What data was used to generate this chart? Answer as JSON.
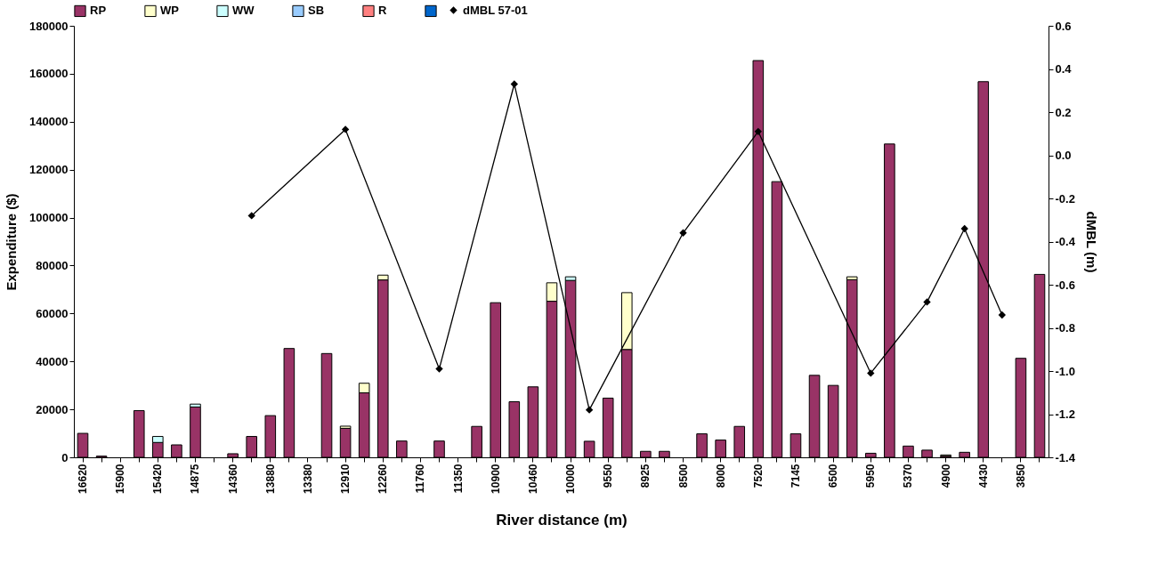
{
  "chart_data": {
    "type": "bar",
    "xlabel": "River distance (m)",
    "ylabel": "Expenditure ($)",
    "y2label": "dMBL (m)",
    "stacked": true,
    "legend": "top",
    "marker": "diamond",
    "categories": [
      "16620",
      null,
      "15900",
      null,
      "15420",
      null,
      "14875",
      null,
      "14360",
      null,
      "13880",
      null,
      "13380",
      null,
      "12910",
      null,
      "12260",
      null,
      "11760",
      null,
      "11350",
      null,
      "10900",
      null,
      "10460",
      null,
      "10000",
      null,
      "9550",
      null,
      "8925",
      null,
      "8500",
      null,
      "8000",
      null,
      "7520",
      null,
      "7145",
      null,
      "6500",
      null,
      "5950",
      null,
      "5370",
      null,
      "4900",
      null,
      "4430",
      null,
      "3850",
      null
    ],
    "ylim": [
      0,
      180000
    ],
    "yticks": [
      0,
      20000,
      40000,
      60000,
      80000,
      100000,
      120000,
      140000,
      160000,
      180000
    ],
    "y2lim": [
      -1.4,
      0.6
    ],
    "y2ticks": [
      {
        "value": -1.4,
        "label": "-1.4"
      },
      {
        "value": -1.2,
        "label": "-1.2"
      },
      {
        "value": -1,
        "label": "-1.0"
      },
      {
        "value": -0.8,
        "label": "-0.8"
      },
      {
        "value": -0.6,
        "label": "-0.6"
      },
      {
        "value": -0.4,
        "label": "-0.4"
      },
      {
        "value": -0.2,
        "label": "-0.2"
      },
      {
        "value": 0,
        "label": "0.0"
      },
      {
        "value": 0.2,
        "label": "0.2"
      },
      {
        "value": 0.4,
        "label": "0.4"
      },
      {
        "value": 0.6,
        "label": "0.6"
      }
    ],
    "series": [
      {
        "name": "RP",
        "color": "#993366",
        "values": [
          10000,
          500,
          null,
          19500,
          6200,
          5200,
          21000,
          null,
          1500,
          8700,
          17400,
          45400,
          null,
          43300,
          12100,
          26900,
          74000,
          6800,
          null,
          6800,
          null,
          12900,
          64500,
          23200,
          29400,
          65100,
          73800,
          6700,
          24700,
          45000,
          2500,
          2500,
          null,
          9800,
          7200,
          12900,
          165500,
          115000,
          9800,
          34200,
          30000,
          74100,
          1700,
          130700,
          4700,
          3000,
          500,
          2100,
          156700,
          null,
          41300,
          76300
        ]
      },
      {
        "name": "WP",
        "color": "#ffffcc",
        "values": [
          null,
          null,
          null,
          null,
          null,
          null,
          null,
          null,
          null,
          null,
          null,
          null,
          null,
          null,
          900,
          4000,
          2000,
          null,
          null,
          null,
          null,
          null,
          null,
          null,
          null,
          7700,
          null,
          null,
          null,
          23700,
          null,
          null,
          null,
          null,
          null,
          null,
          null,
          null,
          null,
          null,
          null,
          1200,
          null,
          null,
          null,
          null,
          500,
          null,
          null,
          null,
          null,
          null
        ]
      },
      {
        "name": "WW",
        "color": "#ccffff",
        "values": [
          null,
          null,
          null,
          null,
          2500,
          null,
          1200,
          null,
          null,
          null,
          null,
          null,
          null,
          null,
          null,
          null,
          null,
          null,
          null,
          null,
          null,
          null,
          null,
          null,
          null,
          null,
          1500,
          null,
          null,
          null,
          null,
          null,
          null,
          null,
          null,
          null,
          null,
          null,
          null,
          null,
          null,
          null,
          null,
          null,
          null,
          null,
          null,
          null,
          null,
          null,
          null,
          null
        ]
      },
      {
        "name": "SB",
        "color": "#99ccff",
        "values": [
          null,
          null,
          null,
          null,
          null,
          null,
          null,
          null,
          null,
          null,
          null,
          null,
          null,
          null,
          null,
          null,
          null,
          null,
          null,
          null,
          null,
          null,
          null,
          null,
          null,
          null,
          null,
          null,
          null,
          null,
          null,
          null,
          null,
          null,
          null,
          null,
          null,
          null,
          null,
          null,
          null,
          null,
          null,
          null,
          null,
          null,
          null,
          null,
          null,
          null,
          null,
          null
        ]
      },
      {
        "name": "R",
        "color": "#ff8080",
        "values": [
          null,
          null,
          null,
          null,
          null,
          null,
          null,
          null,
          null,
          null,
          null,
          null,
          null,
          null,
          null,
          null,
          null,
          null,
          null,
          null,
          null,
          null,
          null,
          null,
          null,
          null,
          null,
          null,
          null,
          null,
          null,
          null,
          null,
          null,
          null,
          null,
          null,
          null,
          null,
          null,
          null,
          null,
          null,
          null,
          null,
          null,
          null,
          null,
          null,
          null,
          null,
          null
        ]
      },
      {
        "color": "#0066cc",
        "values": [
          null,
          null,
          null,
          null,
          null,
          null,
          null,
          null,
          null,
          null,
          null,
          null,
          null,
          null,
          null,
          null,
          null,
          null,
          null,
          null,
          null,
          null,
          null,
          null,
          null,
          null,
          null,
          null,
          null,
          null,
          null,
          null,
          null,
          null,
          null,
          null,
          null,
          null,
          null,
          null,
          null,
          null,
          null,
          null,
          null,
          null,
          null,
          null,
          null,
          null,
          null,
          null
        ]
      },
      {
        "name": "dMBL 57-01",
        "type": "line",
        "axis": "y2",
        "color": "#000000",
        "values": [
          null,
          null,
          null,
          null,
          null,
          null,
          null,
          null,
          null,
          -0.28,
          null,
          null,
          null,
          null,
          0.12,
          null,
          null,
          null,
          null,
          -0.99,
          null,
          null,
          null,
          0.33,
          null,
          null,
          null,
          -1.18,
          null,
          null,
          null,
          null,
          -0.36,
          null,
          null,
          null,
          0.11,
          null,
          null,
          null,
          null,
          null,
          -1.01,
          null,
          null,
          -0.68,
          null,
          -0.34,
          null,
          -0.74,
          null,
          null
        ]
      }
    ]
  }
}
